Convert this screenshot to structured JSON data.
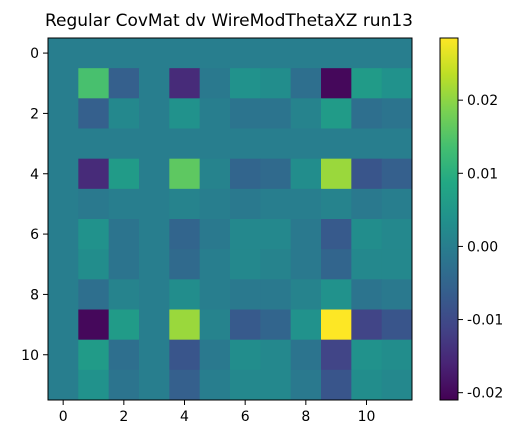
{
  "chart_data": {
    "type": "heatmap",
    "title": "Regular CovMat dv WireModThetaXZ run13",
    "xlabel": "",
    "ylabel": "",
    "x_ticks": [
      "0",
      "2",
      "4",
      "6",
      "8",
      "10"
    ],
    "y_ticks": [
      "0",
      "2",
      "4",
      "6",
      "8",
      "10"
    ],
    "colorbar": {
      "min": -0.021,
      "max": 0.0285,
      "ticks": [
        "-0.02",
        "-0.01",
        "0.00",
        "0.01",
        "0.02"
      ],
      "colormap": "viridis"
    },
    "rows": 12,
    "cols": 12,
    "values": [
      [
        0.0,
        0.0,
        0.0,
        0.0,
        0.0,
        0.0,
        0.0,
        0.0,
        0.0,
        0.0,
        0.0,
        0.0
      ],
      [
        0.0,
        0.014,
        -0.006,
        0.0,
        -0.015,
        -0.001,
        0.004,
        0.003,
        -0.003,
        -0.02,
        0.006,
        0.004
      ],
      [
        0.0,
        -0.006,
        0.002,
        0.0,
        0.004,
        0.0,
        -0.002,
        -0.002,
        0.001,
        0.006,
        -0.003,
        -0.002
      ],
      [
        0.0,
        0.0,
        0.0,
        0.0,
        0.0,
        0.0,
        0.0,
        0.0,
        0.0,
        0.0,
        0.0,
        0.0
      ],
      [
        0.0,
        -0.015,
        0.006,
        0.0,
        0.016,
        0.001,
        -0.005,
        -0.004,
        0.003,
        0.021,
        -0.008,
        -0.006
      ],
      [
        0.0,
        -0.001,
        0.0,
        0.0,
        0.001,
        0.0,
        -0.001,
        0.0,
        0.0,
        0.001,
        -0.001,
        0.0
      ],
      [
        0.0,
        0.004,
        -0.002,
        0.0,
        -0.005,
        -0.001,
        0.002,
        0.002,
        -0.001,
        -0.007,
        0.003,
        0.002
      ],
      [
        0.0,
        0.003,
        -0.002,
        0.0,
        -0.004,
        0.0,
        0.002,
        0.001,
        -0.001,
        -0.005,
        0.002,
        0.002
      ],
      [
        0.0,
        -0.003,
        0.001,
        0.0,
        0.003,
        0.0,
        -0.001,
        -0.001,
        0.001,
        0.004,
        -0.002,
        -0.001
      ],
      [
        0.0,
        -0.02,
        0.006,
        0.0,
        0.021,
        0.001,
        -0.007,
        -0.005,
        0.004,
        0.0285,
        -0.011,
        -0.008
      ],
      [
        0.0,
        0.006,
        -0.003,
        0.0,
        -0.008,
        -0.001,
        0.003,
        0.002,
        -0.002,
        -0.011,
        0.004,
        0.003
      ],
      [
        0.0,
        0.004,
        -0.002,
        0.0,
        -0.006,
        0.0,
        0.002,
        0.002,
        -0.001,
        -0.008,
        0.003,
        0.002
      ]
    ]
  }
}
